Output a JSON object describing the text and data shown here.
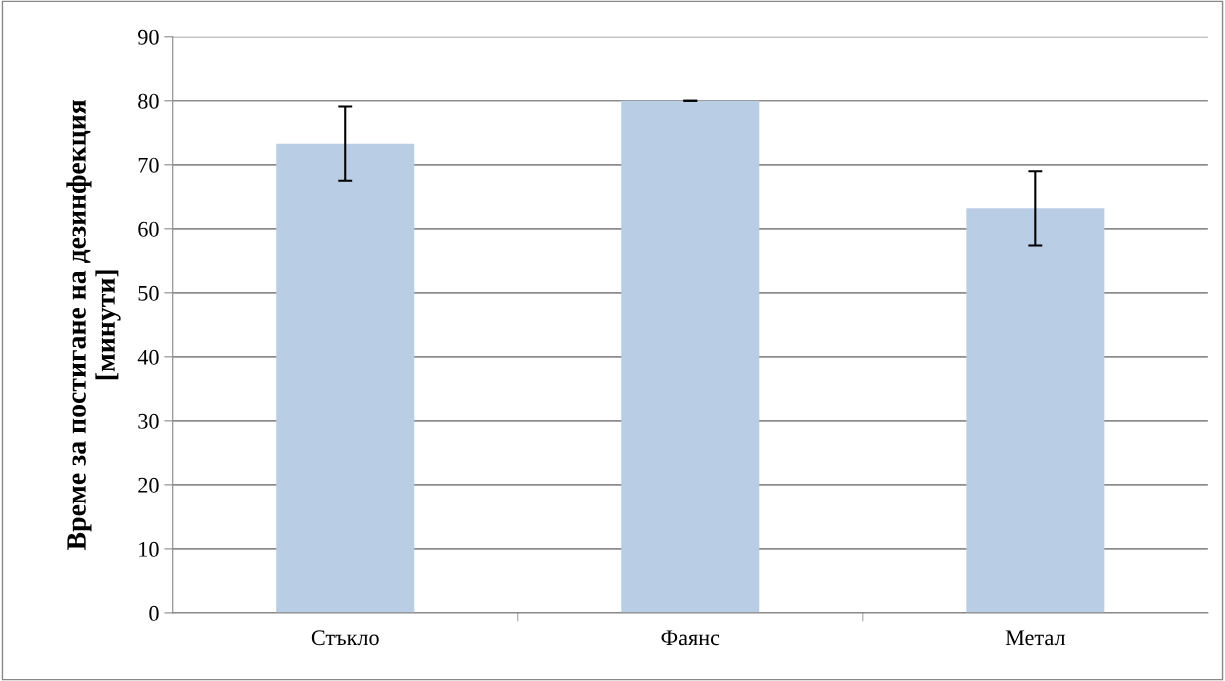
{
  "chart_data": {
    "type": "bar",
    "ylabel": "Време за постигане на дезинфекция\n[минути]",
    "categories": [
      "Стъкло",
      "Фаянс",
      "Метал"
    ],
    "values": [
      73.3,
      80,
      63.2
    ],
    "errors": [
      5.8,
      0,
      5.8
    ],
    "color": "#b9cde5",
    "ylim": [
      0,
      90
    ],
    "yticks": [
      0,
      10,
      20,
      30,
      40,
      50,
      60,
      70,
      80,
      90
    ],
    "grid": "y",
    "legend": false
  }
}
